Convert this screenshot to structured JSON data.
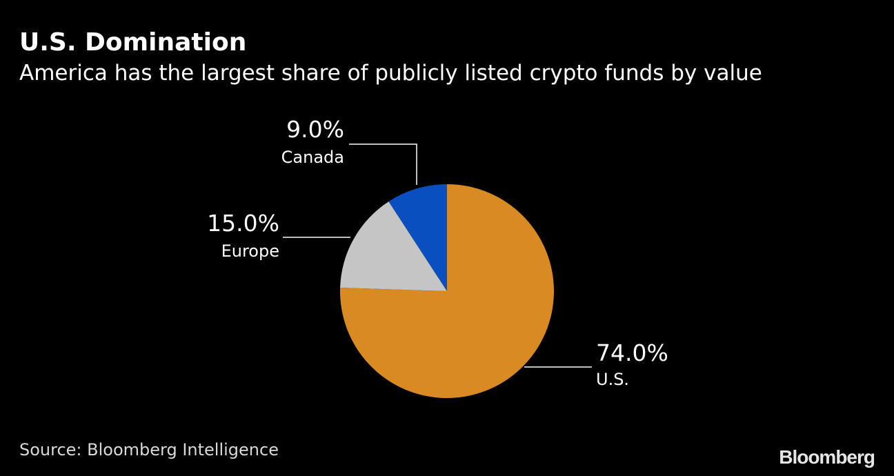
{
  "header": {
    "title": "U.S. Domination",
    "subtitle": "America has the largest share of publicly listed crypto funds by value"
  },
  "chart_data": {
    "type": "pie",
    "title": "U.S. Domination",
    "subtitle": "America has the largest share of publicly listed crypto funds by value",
    "slices": [
      {
        "label": "U.S.",
        "value": 74.0,
        "display": "74.0%",
        "color": "#d98a22"
      },
      {
        "label": "Europe",
        "value": 15.0,
        "display": "15.0%",
        "color": "#c5c5c5"
      },
      {
        "label": "Canada",
        "value": 9.0,
        "display": "9.0%",
        "color": "#0a4fc0"
      }
    ],
    "start": "12 o'clock",
    "direction": "clockwise"
  },
  "footer": {
    "source": "Source: Bloomberg Intelligence",
    "logo": "Bloomberg"
  },
  "colors": {
    "background": "#000000",
    "text": "#ffffff",
    "leader_line": "#ffffff"
  }
}
